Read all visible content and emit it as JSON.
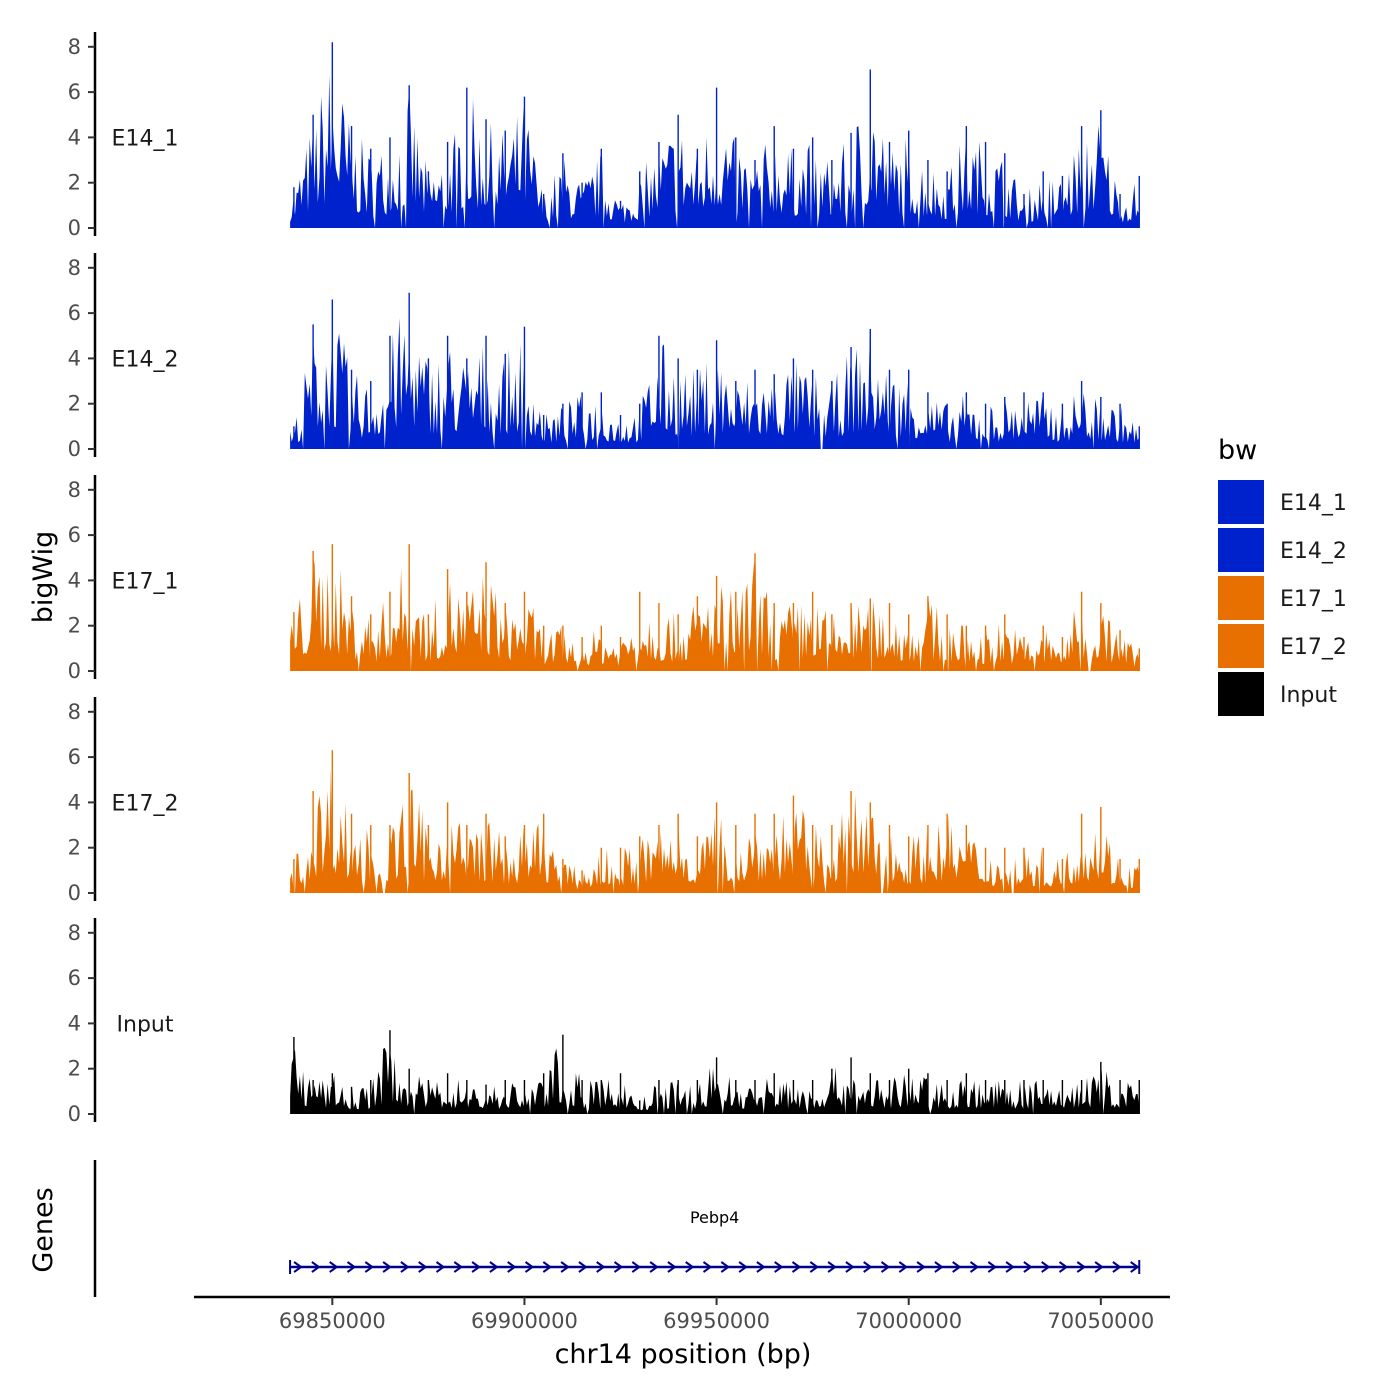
{
  "chart_data": {
    "type": "area",
    "ylabel": "bigWig",
    "xlabel": "chr14 position (bp)",
    "genes_label": "Genes",
    "ylim": [
      0,
      8.5
    ],
    "y_ticks": [
      "0",
      "2",
      "4",
      "6",
      "8"
    ],
    "xlim": [
      69814000,
      70068000
    ],
    "x_ticks": [
      {
        "value": 69850000,
        "label": "69850000"
      },
      {
        "value": 69900000,
        "label": "69900000"
      },
      {
        "value": 69950000,
        "label": "69950000"
      },
      {
        "value": 70000000,
        "label": "70000000"
      },
      {
        "value": 70050000,
        "label": "70050000"
      }
    ],
    "data_range": [
      69839000,
      70060000
    ],
    "series": [
      {
        "name": "E14_1",
        "color": "#0022cc",
        "x": [
          69840000,
          69845000,
          69850000,
          69855000,
          69860000,
          69865000,
          69870000,
          69875000,
          69880000,
          69885000,
          69890000,
          69895000,
          69900000,
          69905000,
          69910000,
          69915000,
          69920000,
          69925000,
          69930000,
          69935000,
          69940000,
          69945000,
          69950000,
          69955000,
          69960000,
          69965000,
          69970000,
          69975000,
          69980000,
          69985000,
          69990000,
          69995000,
          70000000,
          70005000,
          70010000,
          70015000,
          70020000,
          70025000,
          70030000,
          70035000,
          70040000,
          70045000,
          70050000,
          70055000,
          70060000
        ],
        "values": [
          1.8,
          5.0,
          8.2,
          4.5,
          3.5,
          4.0,
          6.3,
          2.5,
          3.8,
          6.2,
          4.8,
          4.3,
          5.8,
          1.5,
          3.3,
          2.0,
          3.5,
          1.2,
          2.5,
          3.8,
          5.0,
          3.5,
          6.2,
          4.0,
          3.0,
          4.5,
          3.5,
          4.0,
          3.0,
          4.2,
          7.0,
          3.8,
          4.3,
          3.0,
          2.5,
          4.5,
          3.8,
          3.3,
          1.5,
          2.5,
          2.3,
          4.5,
          5.2,
          1.5,
          2.3
        ]
      },
      {
        "name": "E14_2",
        "color": "#0022cc",
        "x": [
          69840000,
          69845000,
          69850000,
          69855000,
          69860000,
          69865000,
          69870000,
          69875000,
          69880000,
          69885000,
          69890000,
          69895000,
          69900000,
          69905000,
          69910000,
          69915000,
          69920000,
          69925000,
          69930000,
          69935000,
          69940000,
          69945000,
          69950000,
          69955000,
          69960000,
          69965000,
          69970000,
          69975000,
          69980000,
          69985000,
          69990000,
          69995000,
          70000000,
          70005000,
          70010000,
          70015000,
          70020000,
          70025000,
          70030000,
          70035000,
          70040000,
          70045000,
          70050000,
          70055000,
          70060000
        ],
        "values": [
          1.0,
          5.5,
          6.6,
          3.5,
          3.0,
          5.0,
          6.9,
          4.0,
          5.0,
          4.0,
          5.0,
          4.2,
          5.4,
          1.5,
          2.0,
          2.5,
          2.5,
          1.5,
          2.0,
          5.0,
          4.0,
          3.5,
          4.8,
          3.0,
          3.5,
          3.3,
          4.0,
          3.5,
          3.0,
          4.5,
          5.3,
          3.5,
          3.5,
          2.5,
          2.0,
          2.5,
          2.0,
          2.3,
          2.5,
          2.5,
          2.0,
          3.0,
          2.3,
          2.0,
          1.0
        ]
      },
      {
        "name": "E17_1",
        "color": "#e87000",
        "x": [
          69840000,
          69845000,
          69850000,
          69855000,
          69860000,
          69865000,
          69870000,
          69875000,
          69880000,
          69885000,
          69890000,
          69895000,
          69900000,
          69905000,
          69910000,
          69915000,
          69920000,
          69925000,
          69930000,
          69935000,
          69940000,
          69945000,
          69950000,
          69955000,
          69960000,
          69965000,
          69970000,
          69975000,
          69980000,
          69985000,
          69990000,
          69995000,
          70000000,
          70005000,
          70010000,
          70015000,
          70020000,
          70025000,
          70030000,
          70035000,
          70040000,
          70045000,
          70050000,
          70055000,
          70060000
        ],
        "values": [
          2.6,
          5.3,
          5.6,
          3.3,
          2.5,
          3.5,
          5.6,
          2.5,
          4.5,
          3.5,
          4.8,
          3.0,
          3.5,
          2.0,
          2.0,
          1.5,
          2.0,
          1.5,
          3.5,
          3.0,
          2.5,
          3.3,
          4.2,
          3.5,
          5.2,
          3.0,
          3.0,
          3.5,
          2.5,
          3.0,
          3.2,
          3.0,
          2.5,
          3.3,
          2.5,
          2.0,
          2.0,
          2.5,
          1.5,
          2.0,
          1.5,
          3.5,
          3.0,
          1.8,
          1.0
        ]
      },
      {
        "name": "E17_2",
        "color": "#e87000",
        "x": [
          69840000,
          69845000,
          69850000,
          69855000,
          69860000,
          69865000,
          69870000,
          69875000,
          69880000,
          69885000,
          69890000,
          69895000,
          69900000,
          69905000,
          69910000,
          69915000,
          69920000,
          69925000,
          69930000,
          69935000,
          69940000,
          69945000,
          69950000,
          69955000,
          69960000,
          69965000,
          69970000,
          69975000,
          69980000,
          69985000,
          69990000,
          69995000,
          70000000,
          70005000,
          70010000,
          70015000,
          70020000,
          70025000,
          70030000,
          70035000,
          70040000,
          70045000,
          70050000,
          70055000,
          70060000
        ],
        "values": [
          1.5,
          4.5,
          6.3,
          3.5,
          3.0,
          3.0,
          5.3,
          3.0,
          4.0,
          3.0,
          3.5,
          2.5,
          3.0,
          3.5,
          1.5,
          1.0,
          2.0,
          2.0,
          2.5,
          3.0,
          3.5,
          2.5,
          4.0,
          3.0,
          3.5,
          3.5,
          4.3,
          3.0,
          3.0,
          4.5,
          4.0,
          3.0,
          2.5,
          3.0,
          3.5,
          3.0,
          2.0,
          2.0,
          2.0,
          2.0,
          1.5,
          3.5,
          3.8,
          1.5,
          1.5
        ]
      },
      {
        "name": "Input",
        "color": "#000000",
        "x": [
          69840000,
          69845000,
          69850000,
          69855000,
          69860000,
          69865000,
          69870000,
          69875000,
          69880000,
          69885000,
          69890000,
          69895000,
          69900000,
          69905000,
          69910000,
          69915000,
          69920000,
          69925000,
          69930000,
          69935000,
          69940000,
          69945000,
          69950000,
          69955000,
          69960000,
          69965000,
          69970000,
          69975000,
          69980000,
          69985000,
          69990000,
          69995000,
          70000000,
          70005000,
          70010000,
          70015000,
          70020000,
          70025000,
          70030000,
          70035000,
          70040000,
          70045000,
          70050000,
          70055000,
          70060000
        ],
        "values": [
          3.4,
          1.5,
          1.8,
          1.2,
          1.5,
          3.7,
          2.0,
          1.5,
          1.8,
          1.5,
          1.3,
          1.5,
          1.5,
          1.8,
          3.5,
          1.5,
          1.5,
          1.8,
          0.6,
          1.5,
          1.5,
          1.5,
          2.5,
          1.5,
          1.5,
          1.8,
          1.5,
          1.5,
          2.0,
          2.5,
          1.8,
          1.5,
          2.0,
          1.8,
          1.5,
          1.8,
          1.5,
          1.5,
          1.5,
          1.5,
          1.5,
          1.5,
          2.3,
          1.5,
          1.5
        ]
      }
    ],
    "gene": {
      "name": "Pebp4",
      "start": 69839000,
      "end": 70060000,
      "strand": "+",
      "color": "#00008b"
    },
    "legend": {
      "title": "bw",
      "position": "right",
      "entries": [
        {
          "label": "E14_1",
          "color": "#0022cc"
        },
        {
          "label": "E14_2",
          "color": "#0022cc"
        },
        {
          "label": "E17_1",
          "color": "#e87000"
        },
        {
          "label": "E17_2",
          "color": "#e87000"
        },
        {
          "label": "Input",
          "color": "#000000"
        }
      ]
    }
  }
}
